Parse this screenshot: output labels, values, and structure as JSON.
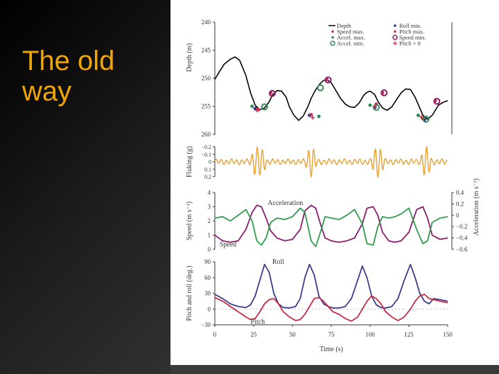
{
  "slide": {
    "title": "The old way",
    "colors": {
      "title": "#f0a500",
      "background_dark": "#000000",
      "background_light": "#4a4a4a"
    }
  },
  "chart_data": [
    {
      "type": "line",
      "panel": "depth",
      "ylabel": "Depth (m)",
      "ylim": [
        260,
        240
      ],
      "yticks": [
        240,
        245,
        250,
        255,
        260
      ],
      "y_inverted": true,
      "series": [
        {
          "name": "Depth",
          "color": "#000000",
          "x": [
            0,
            3,
            6,
            10,
            13,
            16,
            20,
            23,
            26,
            29,
            32,
            35,
            37,
            40,
            43,
            46,
            48,
            51,
            54,
            57,
            60,
            62,
            64,
            66,
            68,
            70,
            72,
            75,
            78,
            81,
            84,
            87,
            90,
            93,
            96,
            98,
            100,
            103,
            105,
            108,
            111,
            114,
            117,
            120,
            123,
            126,
            129,
            132,
            134,
            137,
            140,
            144,
            147,
            150
          ],
          "y": [
            250.2,
            248.8,
            247.5,
            246.6,
            246.2,
            246.8,
            249.5,
            252.6,
            254.8,
            255.6,
            255.3,
            254.2,
            253.0,
            252.2,
            252.3,
            253.4,
            255.1,
            256.6,
            257.5,
            256.7,
            255.0,
            253.6,
            252.5,
            251.6,
            250.9,
            250.4,
            250.2,
            250.8,
            252.2,
            253.6,
            254.6,
            255.1,
            255.2,
            254.4,
            253.0,
            252.5,
            252.3,
            252.9,
            254.1,
            255.3,
            255.7,
            255.1,
            253.8,
            252.6,
            251.9,
            252.0,
            253.4,
            255.3,
            256.6,
            257.3,
            256.6,
            254.8,
            254.3,
            254.0
          ]
        }
      ],
      "markers": [
        {
          "kind": "Accel. max.",
          "color": "#2e8b57",
          "shape": "dot",
          "x": [
            24,
            67,
            100,
            131
          ],
          "y": [
            255.0,
            256.8,
            254.8,
            256.6
          ]
        },
        {
          "kind": "Roll min.",
          "color": "#2c2c8c",
          "shape": "dot",
          "x": [
            26,
            61,
            103,
            135
          ],
          "y": [
            255.4,
            256.6,
            255.2,
            257.4
          ]
        },
        {
          "kind": "Speed max.",
          "color": "#c8324a",
          "shape": "dot",
          "x": [
            28,
            62,
            104,
            134
          ],
          "y": [
            255.6,
            256.5,
            254.6,
            257.2
          ]
        },
        {
          "kind": "Accel. min.",
          "color": "#2e8b57",
          "shape": "ring",
          "x": [
            32,
            68,
            104,
            136
          ],
          "y": [
            255.1,
            251.7,
            255.2,
            257.3
          ]
        },
        {
          "kind": "Pitch max.",
          "color": "#c8324a",
          "shape": "dot",
          "x": [
            36,
            72,
            108,
            142
          ],
          "y": [
            252.6,
            250.2,
            252.6,
            254.0
          ]
        },
        {
          "kind": "Speed min.",
          "color": "#8a1a6e",
          "shape": "ring",
          "x": [
            37,
            73,
            109,
            143
          ],
          "y": [
            252.7,
            250.3,
            252.6,
            254.1
          ]
        },
        {
          "kind": "Pitch = 0",
          "color": "#c8324a",
          "shape": "plus",
          "x": [
            27,
            63,
            103,
            133
          ],
          "y": [
            255.7,
            257.0,
            255.0,
            256.9
          ]
        }
      ],
      "legend": {
        "placement": "top-right",
        "entries": [
          "Depth",
          "Roll min.",
          "Speed max.",
          "Pitch max.",
          "Accel. max.",
          "Speed min.",
          "Accel. min.",
          "Pitch = 0"
        ]
      }
    },
    {
      "type": "line",
      "panel": "fluking",
      "ylabel": "Fluking (g)",
      "ylim": [
        -0.2,
        0.2
      ],
      "yticks": [
        "−0.2",
        "−0.1",
        "0",
        "0.1",
        "0.2"
      ],
      "series": [
        {
          "name": "Fluking",
          "color": "#e8a030",
          "description_note": "oscillating dorsoventral acceleration, bursts during descents",
          "bursts": [
            [
              22,
              34
            ],
            [
              58,
              66
            ],
            [
              100,
              110
            ],
            [
              132,
              140
            ]
          ],
          "burst_amplitude": 0.18,
          "baseline_amplitude": 0.03
        }
      ]
    },
    {
      "type": "line",
      "panel": "speed-acceleration",
      "ylabel": "Speed (m s⁻¹)",
      "ylabel_right": "Acceleration (m s⁻²)",
      "ylim": [
        0,
        4
      ],
      "yticks": [
        0,
        1,
        2,
        3,
        4
      ],
      "yticks_right": [
        "0.4",
        "0.2",
        "0",
        "−0.2",
        "−0.4",
        "−0.6"
      ],
      "annotations": [
        "Acceleration",
        "Speed"
      ],
      "series": [
        {
          "name": "Speed",
          "color": "#8a1a6e",
          "x": [
            0,
            5,
            10,
            15,
            20,
            24,
            27,
            30,
            33,
            36,
            40,
            45,
            50,
            55,
            58,
            62,
            65,
            68,
            71,
            75,
            80,
            85,
            90,
            95,
            98,
            102,
            105,
            108,
            112,
            116,
            120,
            125,
            130,
            134,
            137,
            140,
            145,
            150
          ],
          "y": [
            1.0,
            0.6,
            0.5,
            0.6,
            1.4,
            2.6,
            3.1,
            3.0,
            2.2,
            1.3,
            0.8,
            0.6,
            0.7,
            1.4,
            2.7,
            3.1,
            2.9,
            1.8,
            0.8,
            0.6,
            0.5,
            0.6,
            0.8,
            1.8,
            2.9,
            3.0,
            2.4,
            1.2,
            0.6,
            0.5,
            0.6,
            1.2,
            2.8,
            3.0,
            2.2,
            1.0,
            0.7,
            0.8
          ]
        },
        {
          "name": "Acceleration",
          "color": "#2e9a4a",
          "x": [
            0,
            5,
            10,
            15,
            20,
            24,
            27,
            30,
            33,
            36,
            40,
            45,
            50,
            55,
            58,
            62,
            65,
            68,
            71,
            75,
            80,
            85,
            90,
            95,
            98,
            102,
            105,
            108,
            112,
            116,
            120,
            125,
            130,
            134,
            137,
            140,
            145,
            150
          ],
          "y": [
            2.2,
            2.3,
            2.0,
            2.4,
            2.8,
            2.0,
            0.6,
            0.3,
            0.8,
            1.9,
            2.2,
            2.1,
            2.3,
            2.9,
            2.6,
            0.6,
            0.2,
            1.2,
            2.3,
            2.2,
            2.1,
            2.4,
            2.8,
            1.8,
            0.4,
            0.3,
            1.6,
            2.3,
            2.2,
            2.3,
            2.5,
            2.9,
            1.4,
            0.4,
            0.6,
            1.9,
            2.2,
            2.3
          ]
        }
      ]
    },
    {
      "type": "line",
      "panel": "pitch-roll",
      "ylabel": "Pitch and roll (deg.)",
      "xlabel": "Time (s)",
      "xlim": [
        0,
        150
      ],
      "xticks": [
        0,
        25,
        50,
        75,
        100,
        125,
        150
      ],
      "ylim": [
        -30,
        90
      ],
      "yticks": [
        -30,
        0,
        30,
        60,
        90
      ],
      "annotations": [
        "Roll",
        "Pitch"
      ],
      "series": [
        {
          "name": "Roll",
          "color": "#3a3a8a",
          "x": [
            0,
            5,
            10,
            15,
            20,
            23,
            26,
            29,
            32,
            35,
            38,
            41,
            44,
            48,
            52,
            55,
            58,
            61,
            64,
            67,
            70,
            73,
            76,
            80,
            84,
            88,
            92,
            95,
            98,
            101,
            104,
            107,
            110,
            114,
            118,
            122,
            126,
            129,
            132,
            135,
            138,
            141,
            145,
            150
          ],
          "y": [
            28,
            20,
            10,
            5,
            3,
            8,
            25,
            55,
            85,
            70,
            30,
            10,
            3,
            2,
            5,
            20,
            60,
            85,
            65,
            25,
            10,
            5,
            2,
            2,
            5,
            20,
            55,
            82,
            60,
            25,
            8,
            3,
            2,
            5,
            20,
            55,
            85,
            60,
            30,
            15,
            10,
            20,
            18,
            15
          ]
        },
        {
          "name": "Pitch",
          "color": "#c82840",
          "x": [
            0,
            5,
            10,
            15,
            20,
            23,
            26,
            29,
            32,
            35,
            38,
            41,
            44,
            48,
            52,
            55,
            58,
            61,
            64,
            67,
            70,
            73,
            76,
            80,
            84,
            88,
            92,
            95,
            98,
            101,
            104,
            107,
            110,
            114,
            118,
            122,
            126,
            129,
            132,
            135,
            138,
            141,
            145,
            150
          ],
          "y": [
            22,
            15,
            5,
            -5,
            -15,
            -20,
            -18,
            -5,
            10,
            18,
            20,
            10,
            -5,
            -15,
            -22,
            -20,
            -10,
            5,
            20,
            22,
            15,
            5,
            -5,
            -10,
            -18,
            -23,
            -15,
            0,
            15,
            25,
            20,
            10,
            -5,
            -15,
            -22,
            -15,
            0,
            15,
            25,
            28,
            20,
            18,
            15,
            12
          ]
        }
      ]
    }
  ]
}
